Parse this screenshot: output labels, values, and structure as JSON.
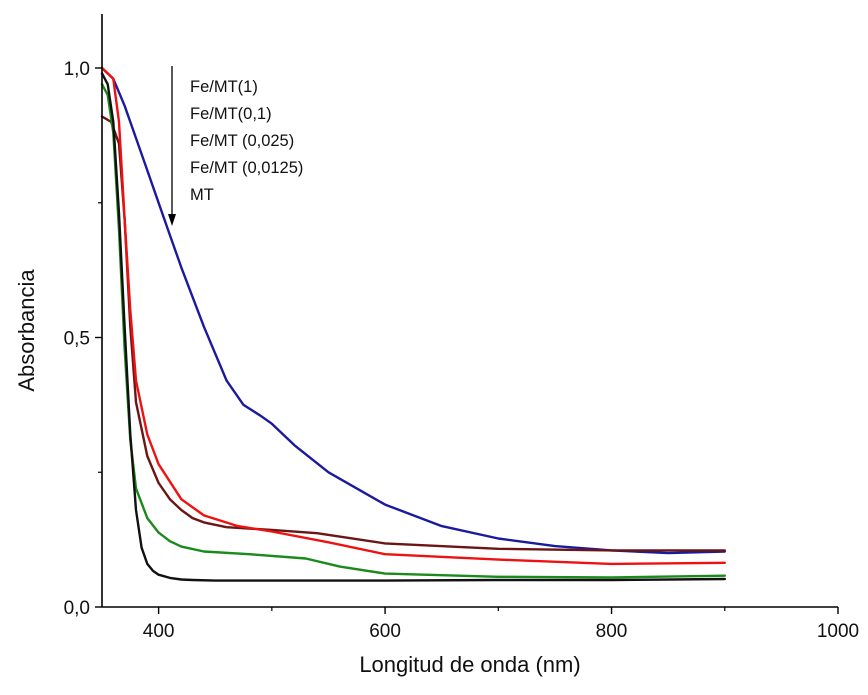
{
  "chart_data": {
    "type": "line",
    "title": "",
    "xlabel": "Longitud de onda (nm)",
    "ylabel": "Absorbancia",
    "xlim": [
      350,
      1000
    ],
    "ylim": [
      0,
      1.1
    ],
    "xticks": [
      400,
      600,
      800,
      1000
    ],
    "xtick_labels": [
      "400",
      "600",
      "800",
      "1000"
    ],
    "yticks": [
      0,
      0.5,
      1
    ],
    "ytick_labels": [
      "0,0",
      "0,5",
      "1,0"
    ],
    "grid": false,
    "legend_position": "top-left",
    "legend_arrow": "down",
    "legend_entries": [
      "Fe/MT(1)",
      "Fe/MT(0,1)",
      "Fe/MT (0,025)",
      "Fe/MT (0,0125)",
      "MT"
    ],
    "series": [
      {
        "color": "#1a1a9e",
        "x": [
          350,
          360,
          370,
          380,
          390,
          400,
          410,
          420,
          440,
          460,
          475,
          490,
          500,
          520,
          550,
          600,
          650,
          700,
          750,
          800,
          850,
          900
        ],
        "y": [
          1.0,
          0.98,
          0.93,
          0.87,
          0.81,
          0.75,
          0.69,
          0.63,
          0.52,
          0.42,
          0.375,
          0.355,
          0.34,
          0.3,
          0.25,
          0.19,
          0.15,
          0.127,
          0.113,
          0.105,
          0.1,
          0.103
        ]
      },
      {
        "color": "#6b1515",
        "x": [
          350,
          358,
          365,
          370,
          375,
          380,
          390,
          400,
          410,
          420,
          430,
          440,
          460,
          500,
          540,
          600,
          700,
          800,
          900
        ],
        "y": [
          0.91,
          0.9,
          0.86,
          0.72,
          0.52,
          0.38,
          0.28,
          0.23,
          0.2,
          0.18,
          0.165,
          0.157,
          0.148,
          0.143,
          0.137,
          0.118,
          0.108,
          0.105,
          0.105
        ]
      },
      {
        "color": "#ee1111",
        "x": [
          350,
          360,
          365,
          370,
          375,
          380,
          390,
          400,
          420,
          440,
          470,
          500,
          550,
          600,
          700,
          800,
          900
        ],
        "y": [
          1.0,
          0.98,
          0.9,
          0.72,
          0.55,
          0.42,
          0.32,
          0.265,
          0.2,
          0.17,
          0.15,
          0.14,
          0.12,
          0.098,
          0.088,
          0.08,
          0.082
        ]
      },
      {
        "color": "#1a8a1a",
        "x": [
          350,
          355,
          360,
          365,
          370,
          375,
          380,
          390,
          400,
          410,
          420,
          440,
          480,
          530,
          560,
          600,
          700,
          800,
          900
        ],
        "y": [
          0.97,
          0.95,
          0.88,
          0.7,
          0.48,
          0.31,
          0.22,
          0.165,
          0.138,
          0.122,
          0.112,
          0.103,
          0.098,
          0.09,
          0.075,
          0.062,
          0.056,
          0.055,
          0.058
        ]
      },
      {
        "color": "#111111",
        "x": [
          350,
          355,
          360,
          365,
          370,
          375,
          380,
          385,
          390,
          395,
          400,
          410,
          420,
          430,
          450,
          500,
          600,
          700,
          800,
          900
        ],
        "y": [
          0.99,
          0.97,
          0.9,
          0.73,
          0.52,
          0.32,
          0.18,
          0.11,
          0.08,
          0.067,
          0.06,
          0.054,
          0.051,
          0.05,
          0.049,
          0.049,
          0.049,
          0.05,
          0.05,
          0.052
        ]
      }
    ]
  }
}
